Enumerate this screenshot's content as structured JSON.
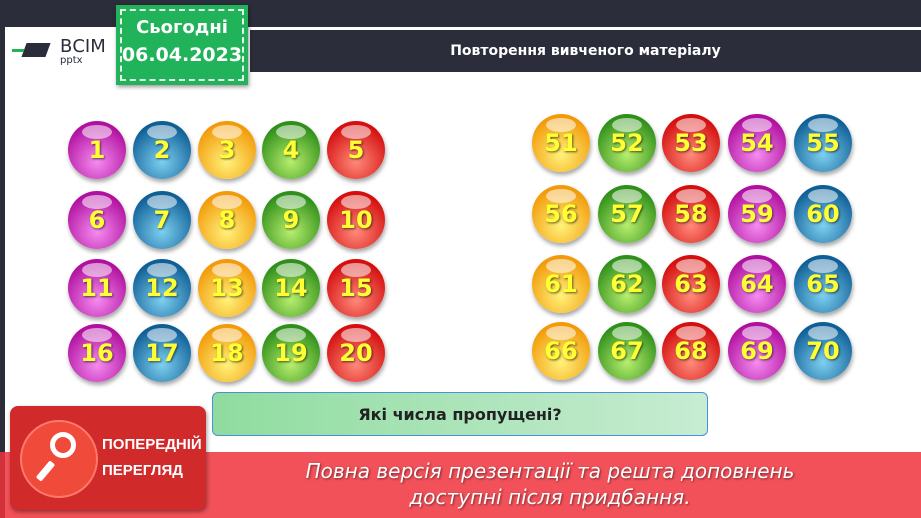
{
  "header": {
    "title": "Повторення вивченого матеріалу"
  },
  "logo": {
    "name": "ВСІМ",
    "sub": "pptx"
  },
  "date": {
    "label": "Сьогодні",
    "value": "06.04.2023"
  },
  "left_grid": [
    [
      {
        "n": "1",
        "color": "magenta"
      },
      {
        "n": "2",
        "color": "blue"
      },
      {
        "n": "3",
        "color": "orange"
      },
      {
        "n": "4",
        "color": "green"
      },
      {
        "n": "5",
        "color": "red"
      }
    ],
    [
      {
        "n": "6",
        "color": "magenta"
      },
      {
        "n": "7",
        "color": "blue"
      },
      {
        "n": "8",
        "color": "orange"
      },
      {
        "n": "9",
        "color": "green"
      },
      {
        "n": "10",
        "color": "red"
      }
    ],
    [
      {
        "n": "11",
        "color": "magenta"
      },
      {
        "n": "12",
        "color": "blue"
      },
      {
        "n": "13",
        "color": "orange"
      },
      {
        "n": "14",
        "color": "green"
      },
      {
        "n": "15",
        "color": "red"
      }
    ],
    [
      {
        "n": "16",
        "color": "magenta"
      },
      {
        "n": "17",
        "color": "blue"
      },
      {
        "n": "18",
        "color": "orange"
      },
      {
        "n": "19",
        "color": "green"
      },
      {
        "n": "20",
        "color": "red"
      }
    ]
  ],
  "right_grid": [
    [
      {
        "n": "51",
        "color": "orange"
      },
      {
        "n": "52",
        "color": "green"
      },
      {
        "n": "53",
        "color": "red"
      },
      {
        "n": "54",
        "color": "magenta"
      },
      {
        "n": "55",
        "color": "blue"
      }
    ],
    [
      {
        "n": "56",
        "color": "orange"
      },
      {
        "n": "57",
        "color": "green"
      },
      {
        "n": "58",
        "color": "red"
      },
      {
        "n": "59",
        "color": "magenta"
      },
      {
        "n": "60",
        "color": "blue"
      }
    ],
    [
      {
        "n": "61",
        "color": "orange"
      },
      {
        "n": "62",
        "color": "green"
      },
      {
        "n": "63",
        "color": "red"
      },
      {
        "n": "64",
        "color": "magenta"
      },
      {
        "n": "65",
        "color": "blue"
      }
    ],
    [
      {
        "n": "66",
        "color": "orange"
      },
      {
        "n": "67",
        "color": "green"
      },
      {
        "n": "68",
        "color": "red"
      },
      {
        "n": "69",
        "color": "magenta"
      },
      {
        "n": "70",
        "color": "blue"
      }
    ]
  ],
  "question": "Які числа пропущені?",
  "preview": {
    "line1": "ПОПЕРЕДНІЙ",
    "line2": "ПЕРЕГЛЯД",
    "icon": "magnifier-icon"
  },
  "banner": {
    "line1": "Повна версія презентації та решта доповнень",
    "line2": "доступні після придбання."
  }
}
